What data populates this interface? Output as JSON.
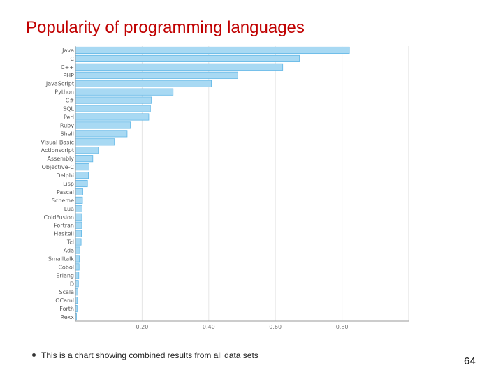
{
  "slide": {
    "title": "Popularity of programming languages",
    "bullet": "This is a chart showing combined results from all data sets",
    "page_number": "64"
  },
  "colors": {
    "title": "#c00000",
    "bar_fill": "#a8d9f3",
    "bar_stroke": "#5fb6e6",
    "axis": "#999999"
  },
  "chart_data": {
    "type": "bar",
    "orientation": "horizontal",
    "title": "",
    "xlabel": "",
    "ylabel": "",
    "xlim": [
      0,
      1.0
    ],
    "xticks": [
      0.2,
      0.4,
      0.6,
      0.8
    ],
    "xtick_labels": [
      "0.20",
      "0.40",
      "0.60",
      "0.80"
    ],
    "grid": true,
    "legend": "none",
    "categories": [
      "Java",
      "C",
      "C++",
      "PHP",
      "JavaScript",
      "Python",
      "C#",
      "SQL",
      "Perl",
      "Ruby",
      "Shell",
      "Visual Basic",
      "Actionscript",
      "Assembly",
      "Objective-C",
      "Delphi",
      "Lisp",
      "Pascal",
      "Scheme",
      "Lua",
      "ColdFusion",
      "Fortran",
      "Haskell",
      "Tcl",
      "Ada",
      "Smalltalk",
      "Cobol",
      "Erlang",
      "D",
      "Scala",
      "OCaml",
      "Forth",
      "Rexx"
    ],
    "values": [
      0.822,
      0.672,
      0.622,
      0.487,
      0.408,
      0.293,
      0.228,
      0.225,
      0.22,
      0.165,
      0.155,
      0.117,
      0.068,
      0.052,
      0.041,
      0.039,
      0.036,
      0.022,
      0.021,
      0.02,
      0.019,
      0.019,
      0.018,
      0.017,
      0.013,
      0.012,
      0.011,
      0.01,
      0.009,
      0.007,
      0.006,
      0.005,
      0.003
    ]
  }
}
